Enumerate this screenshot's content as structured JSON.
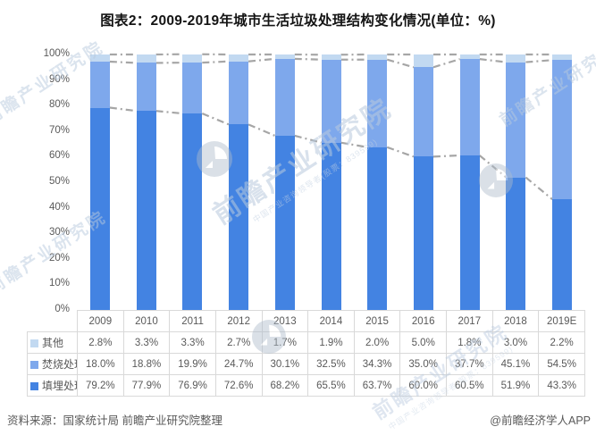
{
  "title": "图表2：2009-2019年城市生活垃圾处理结构变化情况(单位：%)",
  "chart_data": {
    "type": "bar",
    "stacked": true,
    "title": "图表2：2009-2019年城市生活垃圾处理结构变化情况(单位：%)",
    "categories": [
      "2009",
      "2010",
      "2011",
      "2012",
      "2013",
      "2014",
      "2015",
      "2016",
      "2017",
      "2018",
      "2019E"
    ],
    "series": [
      {
        "name": "其他",
        "color": "#c2d9f1",
        "values": [
          2.8,
          3.3,
          3.3,
          2.7,
          1.7,
          1.9,
          2.0,
          5.0,
          1.8,
          3.0,
          2.2
        ]
      },
      {
        "name": "焚烧处理",
        "color": "#7ea8ec",
        "values": [
          18.0,
          18.8,
          19.9,
          24.7,
          30.1,
          32.5,
          34.3,
          35.0,
          37.7,
          45.1,
          54.5
        ]
      },
      {
        "name": "填埋处理",
        "color": "#4383e2",
        "values": [
          79.2,
          77.9,
          76.9,
          72.6,
          68.2,
          65.5,
          63.7,
          60.0,
          60.5,
          51.9,
          43.3
        ]
      }
    ],
    "y_ticks": [
      "100%",
      "90%",
      "80%",
      "70%",
      "60%",
      "50%",
      "40%",
      "30%",
      "20%",
      "10%",
      "0%"
    ],
    "ylim": [
      0,
      100
    ],
    "grid": false,
    "series_lines": true,
    "series_line_color": "#a6a6a6",
    "legend_position": "table-left-column",
    "value_suffix": "%"
  },
  "table_border_color": "#d9d9d9",
  "footer": {
    "source": "资料来源：国家统计局 前瞻产业研究院整理",
    "credit": "@前瞻经济学人APP"
  },
  "watermarks": {
    "logo_text": "前瞻产业研究院",
    "tagline": "中国产业咨询领导者(股票：839599)"
  }
}
